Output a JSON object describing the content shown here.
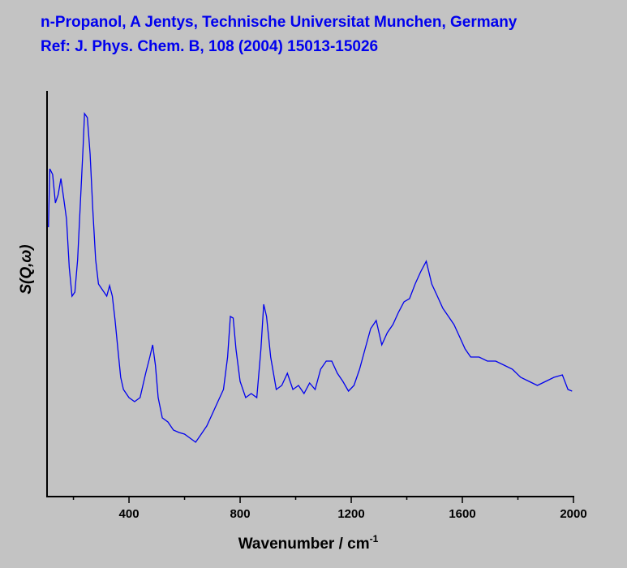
{
  "chart_data": {
    "type": "line",
    "title": "n-Propanol, A Jentys, Technische Universitat Munchen, Germany",
    "subtitle": "Ref: J. Phys. Chem. B, 108 (2004) 15013-15026",
    "xlabel": "Wavenumber / cm",
    "xlabel_superscript": "-1",
    "ylabel": "S(Q,ω)",
    "xlim": [
      100,
      2000
    ],
    "xticks": [
      400,
      800,
      1200,
      1600,
      2000
    ],
    "minor_xticks": [
      200,
      600,
      1000,
      1400,
      1800
    ],
    "ylim": [
      0,
      100
    ],
    "series": [
      {
        "color": "#0000ee",
        "x": [
          110,
          115,
          125,
          135,
          145,
          155,
          165,
          175,
          185,
          195,
          205,
          215,
          225,
          235,
          240,
          250,
          260,
          270,
          280,
          290,
          300,
          310,
          320,
          330,
          340,
          350,
          360,
          370,
          380,
          400,
          420,
          440,
          460,
          475,
          485,
          495,
          505,
          520,
          540,
          560,
          580,
          600,
          620,
          640,
          660,
          680,
          700,
          720,
          740,
          755,
          765,
          775,
          785,
          800,
          820,
          840,
          860,
          875,
          885,
          895,
          910,
          930,
          950,
          970,
          990,
          1010,
          1030,
          1050,
          1070,
          1090,
          1110,
          1130,
          1150,
          1170,
          1190,
          1210,
          1230,
          1250,
          1270,
          1290,
          1310,
          1330,
          1350,
          1370,
          1390,
          1410,
          1430,
          1450,
          1470,
          1490,
          1510,
          1530,
          1550,
          1570,
          1590,
          1610,
          1630,
          1660,
          1690,
          1720,
          1750,
          1780,
          1810,
          1840,
          1870,
          1900,
          1930,
          1960,
          1980,
          1995
        ],
        "values": [
          66.4,
          80.8,
          79.4,
          72.4,
          74.4,
          78.4,
          73.4,
          68.4,
          56.4,
          49.4,
          50.4,
          58.4,
          72.4,
          86.4,
          94.4,
          93.4,
          84.4,
          70.4,
          58.4,
          52.4,
          51.4,
          50.4,
          49.4,
          52,
          49.4,
          43.4,
          36.4,
          29.4,
          26.4,
          24.4,
          23.4,
          24.4,
          30.4,
          34.4,
          37.4,
          32.4,
          24.4,
          19.4,
          18.4,
          16.4,
          15.8,
          15.4,
          14.4,
          13.4,
          15.4,
          17.4,
          20.4,
          23.4,
          26.4,
          34.4,
          44.4,
          44,
          36.4,
          28.4,
          24.4,
          25.4,
          24.4,
          36.4,
          47.4,
          44.4,
          34.4,
          26.4,
          27.4,
          30.4,
          26.4,
          27.4,
          25.4,
          28,
          26.4,
          31.4,
          33.4,
          33.4,
          30.4,
          28.4,
          26,
          27.4,
          31.4,
          36.4,
          41.4,
          43.4,
          37.4,
          40.4,
          42.4,
          45.4,
          48,
          48.8,
          52.4,
          55.4,
          58,
          52.4,
          49.4,
          46.4,
          44.4,
          42.4,
          39.4,
          36.4,
          34.4,
          34.4,
          33.4,
          33.4,
          32.4,
          31.4,
          29.4,
          28.4,
          27.4,
          28.4,
          29.4,
          30,
          26.4,
          26
        ]
      }
    ]
  }
}
